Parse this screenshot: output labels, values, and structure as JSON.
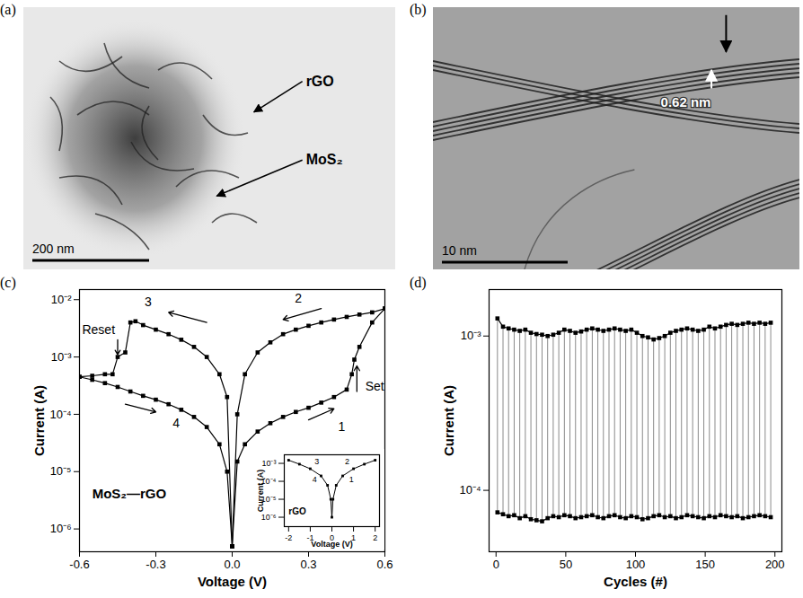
{
  "chart_data": [
    {
      "type": "image",
      "label": "(a)",
      "annotations": [
        {
          "text": "rGO"
        },
        {
          "text": "MoS₂"
        }
      ],
      "scale_bar": "200 nm"
    },
    {
      "type": "image",
      "label": "(b)",
      "annotations": [
        {
          "text": "0.62 nm"
        }
      ],
      "scale_bar": "10 nm"
    },
    {
      "type": "line",
      "label": "(c)",
      "x_label": "Voltage (V)",
      "y_label": "Current (A)",
      "log": "y",
      "xlim": [
        -0.6,
        0.6
      ],
      "ylim": [
        4e-07,
        0.015
      ],
      "xticks": [
        -0.6,
        -0.3,
        {
          "value": 0,
          "label": "0.0"
        },
        0.3,
        0.6
      ],
      "yticks": [
        {
          "value": 1e-06,
          "label": "10⁻⁶"
        },
        {
          "value": 1e-05,
          "label": "10⁻⁵"
        },
        {
          "value": 0.0001,
          "label": "10⁻⁴"
        },
        {
          "value": 0.001,
          "label": "10⁻³"
        },
        {
          "value": 0.01,
          "label": "10⁻²"
        }
      ],
      "grid": false,
      "color": "#000000",
      "marker": "square",
      "line_style": "solid",
      "series": [
        {
          "x": [
            0,
            0.02,
            0.05,
            0.1,
            0.15,
            0.2,
            0.25,
            0.3,
            0.35,
            0.4,
            0.45,
            0.47,
            0.48,
            0.5,
            0.55,
            0.6
          ],
          "values": [
            5e-07,
            1.5e-05,
            3e-05,
            5e-05,
            7e-05,
            9e-05,
            0.00011,
            0.00013,
            0.00016,
            0.0002,
            0.00027,
            0.0005,
            0.0009,
            0.0015,
            0.004,
            0.007
          ]
        },
        {
          "x": [
            0.6,
            0.55,
            0.5,
            0.45,
            0.4,
            0.35,
            0.3,
            0.25,
            0.2,
            0.15,
            0.1,
            0.05,
            0.02,
            0
          ],
          "values": [
            0.007,
            0.006,
            0.0055,
            0.005,
            0.0045,
            0.004,
            0.0035,
            0.003,
            0.0025,
            0.0018,
            0.0012,
            0.0005,
            0.0001,
            5e-07
          ]
        },
        {
          "x": [
            0,
            -0.02,
            -0.05,
            -0.1,
            -0.15,
            -0.2,
            -0.25,
            -0.3,
            -0.35,
            -0.38,
            -0.4,
            -0.42,
            -0.45,
            -0.47,
            -0.5,
            -0.55,
            -0.6
          ],
          "values": [
            5e-07,
            0.0002,
            0.0005,
            0.001,
            0.0015,
            0.002,
            0.0025,
            0.003,
            0.0036,
            0.0042,
            0.004,
            0.0012,
            0.001,
            0.0005,
            0.0005,
            0.00047,
            0.00045
          ]
        },
        {
          "x": [
            -0.6,
            -0.55,
            -0.5,
            -0.45,
            -0.4,
            -0.35,
            -0.3,
            -0.25,
            -0.2,
            -0.15,
            -0.1,
            -0.05,
            -0.02,
            0
          ],
          "values": [
            0.00045,
            0.0004,
            0.00035,
            0.0003,
            0.00025,
            0.00021,
            0.00018,
            0.00015,
            0.00012,
            9e-05,
            6e-05,
            3e-05,
            1e-05,
            5e-07
          ]
        }
      ],
      "annotations": [
        {
          "text": "1",
          "x": 0.43,
          "y": 6e-05,
          "arrow": [
            0.3,
            8e-05,
            0.4,
            0.000125
          ]
        },
        {
          "text": "Set",
          "x": 0.56,
          "y": 0.0003,
          "arrow": [
            0.49,
            0.00025,
            0.49,
            0.0007
          ]
        },
        {
          "text": "2",
          "x": 0.26,
          "y": 0.0105,
          "arrow": [
            0.35,
            0.007,
            0.2,
            0.0045
          ]
        },
        {
          "text": "3",
          "x": -0.33,
          "y": 0.009,
          "arrow": [
            -0.1,
            0.004,
            -0.25,
            0.006
          ]
        },
        {
          "text": "Reset",
          "x": -0.525,
          "y": 0.003,
          "arrow": [
            -0.45,
            0.002,
            -0.45,
            0.0011
          ]
        },
        {
          "text": "4",
          "x": -0.22,
          "y": 7e-05,
          "arrow": [
            -0.42,
            0.00015,
            -0.3,
            0.00011
          ]
        },
        {
          "text": "MoS₂—rGO",
          "x": -0.55,
          "y": 4e-06
        }
      ],
      "inset": {
        "type": "line",
        "x_label": "Voltage (V)",
        "y_label": "Current (A)",
        "log": "y",
        "xlim": [
          -2.2,
          2.2
        ],
        "ylim": [
          3e-07,
          0.003
        ],
        "xticks": [
          -2,
          -1,
          0,
          1,
          2
        ],
        "yticks": [
          {
            "value": 1e-06,
            "label": "10⁻⁶"
          },
          {
            "value": 1e-05,
            "label": "10⁻⁵"
          },
          {
            "value": 0.0001,
            "label": "10⁻⁴"
          },
          {
            "value": 0.001,
            "label": "10⁻³"
          }
        ],
        "grid": false,
        "color": "#000000",
        "marker": "square",
        "line_style": "solid",
        "series": [
          {
            "x": [
              -2,
              -1.5,
              -1,
              -0.5,
              -0.2,
              -0.05,
              0,
              0.05,
              0.2,
              0.5,
              1,
              1.5,
              2
            ],
            "values": [
              0.0015,
              0.0009,
              0.0005,
              0.0002,
              6e-05,
              1e-05,
              1e-06,
              1e-05,
              6e-05,
              0.0002,
              0.0005,
              0.0009,
              0.0015
            ]
          }
        ],
        "annotations": [
          {
            "text": "3",
            "x": -0.8,
            "y": 0.0012
          },
          {
            "text": "2",
            "x": 0.6,
            "y": 0.0012
          },
          {
            "text": "4",
            "x": -0.9,
            "y": 0.00012
          },
          {
            "text": "1",
            "x": 0.8,
            "y": 0.00012
          },
          {
            "text": "rGO",
            "x": -2.0,
            "y": 2e-06
          }
        ]
      }
    },
    {
      "type": "cycles",
      "label": "(d)",
      "x_label": "Cycles (#)",
      "y_label": "Current (A)",
      "log": "y",
      "xlim": [
        -5,
        205
      ],
      "ylim": [
        4e-05,
        0.002
      ],
      "xticks": [
        0,
        50,
        100,
        150,
        200
      ],
      "yticks": [
        {
          "value": 0.0001,
          "label": "10⁻⁴"
        },
        {
          "value": 0.001,
          "label": "10⁻³"
        }
      ],
      "grid": false,
      "color": "#000000",
      "marker": "square",
      "line_style": "solid",
      "x": [
        1,
        5,
        9,
        13,
        17,
        21,
        25,
        29,
        33,
        37,
        41,
        45,
        49,
        53,
        57,
        61,
        65,
        69,
        73,
        77,
        81,
        85,
        89,
        93,
        97,
        101,
        105,
        109,
        113,
        117,
        121,
        125,
        129,
        133,
        137,
        141,
        145,
        149,
        153,
        157,
        161,
        165,
        169,
        173,
        177,
        181,
        185,
        189,
        193,
        197
      ],
      "series": [
        {
          "values": [
            0.0013,
            0.00115,
            0.00112,
            0.0011,
            0.00108,
            0.0011,
            0.00105,
            0.00103,
            0.00102,
            0.001,
            0.00102,
            0.00105,
            0.0011,
            0.00108,
            0.00105,
            0.00107,
            0.0011,
            0.00112,
            0.0011,
            0.00108,
            0.0011,
            0.00112,
            0.0011,
            0.00108,
            0.0011,
            0.00105,
            0.001,
            0.00098,
            0.00095,
            0.00097,
            0.001,
            0.00105,
            0.00108,
            0.0011,
            0.00112,
            0.0011,
            0.00108,
            0.0011,
            0.00115,
            0.00112,
            0.00115,
            0.00118,
            0.0012,
            0.00118,
            0.0012,
            0.00122,
            0.0012,
            0.00122,
            0.0012,
            0.00122
          ]
        },
        {
          "values": [
            7.2e-05,
            7e-05,
            6.8e-05,
            6.9e-05,
            6.6e-05,
            6.8e-05,
            6.5e-05,
            6.4e-05,
            6.3e-05,
            6.6e-05,
            6.8e-05,
            6.7e-05,
            6.9e-05,
            6.8e-05,
            6.6e-05,
            6.7e-05,
            6.8e-05,
            6.9e-05,
            6.7e-05,
            6.6e-05,
            6.8e-05,
            6.9e-05,
            6.7e-05,
            6.6e-05,
            6.8e-05,
            6.7e-05,
            6.5e-05,
            6.6e-05,
            6.8e-05,
            6.9e-05,
            6.7e-05,
            6.8e-05,
            6.6e-05,
            6.7e-05,
            6.9e-05,
            6.8e-05,
            6.7e-05,
            6.6e-05,
            6.8e-05,
            6.7e-05,
            6.9e-05,
            6.8e-05,
            6.7e-05,
            6.8e-05,
            6.6e-05,
            6.7e-05,
            6.8e-05,
            6.9e-05,
            6.8e-05,
            6.7e-05
          ]
        }
      ]
    }
  ]
}
